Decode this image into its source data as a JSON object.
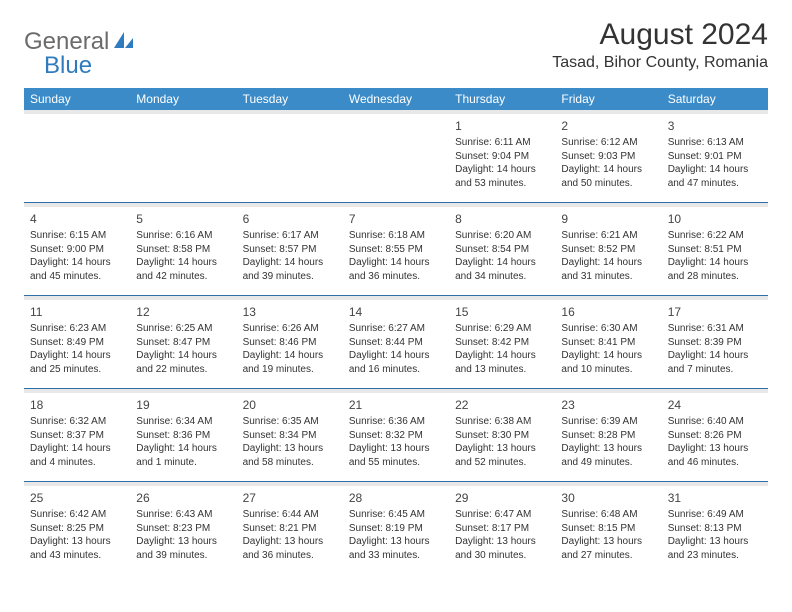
{
  "logo": {
    "general": "General",
    "blue": "Blue"
  },
  "title": "August 2024",
  "location": "Tasad, Bihor County, Romania",
  "colors": {
    "header_bg": "#3b8bc8",
    "header_text": "#ffffff",
    "row_divider": "#2f6fa8",
    "sep_row": "#e8e8e8",
    "logo_gray": "#6b6b6b",
    "logo_blue": "#2f7bbf"
  },
  "day_headers": [
    "Sunday",
    "Monday",
    "Tuesday",
    "Wednesday",
    "Thursday",
    "Friday",
    "Saturday"
  ],
  "weeks": [
    [
      null,
      null,
      null,
      null,
      {
        "n": "1",
        "sr": "6:11 AM",
        "ss": "9:04 PM",
        "dl": "14 hours and 53 minutes."
      },
      {
        "n": "2",
        "sr": "6:12 AM",
        "ss": "9:03 PM",
        "dl": "14 hours and 50 minutes."
      },
      {
        "n": "3",
        "sr": "6:13 AM",
        "ss": "9:01 PM",
        "dl": "14 hours and 47 minutes."
      }
    ],
    [
      {
        "n": "4",
        "sr": "6:15 AM",
        "ss": "9:00 PM",
        "dl": "14 hours and 45 minutes."
      },
      {
        "n": "5",
        "sr": "6:16 AM",
        "ss": "8:58 PM",
        "dl": "14 hours and 42 minutes."
      },
      {
        "n": "6",
        "sr": "6:17 AM",
        "ss": "8:57 PM",
        "dl": "14 hours and 39 minutes."
      },
      {
        "n": "7",
        "sr": "6:18 AM",
        "ss": "8:55 PM",
        "dl": "14 hours and 36 minutes."
      },
      {
        "n": "8",
        "sr": "6:20 AM",
        "ss": "8:54 PM",
        "dl": "14 hours and 34 minutes."
      },
      {
        "n": "9",
        "sr": "6:21 AM",
        "ss": "8:52 PM",
        "dl": "14 hours and 31 minutes."
      },
      {
        "n": "10",
        "sr": "6:22 AM",
        "ss": "8:51 PM",
        "dl": "14 hours and 28 minutes."
      }
    ],
    [
      {
        "n": "11",
        "sr": "6:23 AM",
        "ss": "8:49 PM",
        "dl": "14 hours and 25 minutes."
      },
      {
        "n": "12",
        "sr": "6:25 AM",
        "ss": "8:47 PM",
        "dl": "14 hours and 22 minutes."
      },
      {
        "n": "13",
        "sr": "6:26 AM",
        "ss": "8:46 PM",
        "dl": "14 hours and 19 minutes."
      },
      {
        "n": "14",
        "sr": "6:27 AM",
        "ss": "8:44 PM",
        "dl": "14 hours and 16 minutes."
      },
      {
        "n": "15",
        "sr": "6:29 AM",
        "ss": "8:42 PM",
        "dl": "14 hours and 13 minutes."
      },
      {
        "n": "16",
        "sr": "6:30 AM",
        "ss": "8:41 PM",
        "dl": "14 hours and 10 minutes."
      },
      {
        "n": "17",
        "sr": "6:31 AM",
        "ss": "8:39 PM",
        "dl": "14 hours and 7 minutes."
      }
    ],
    [
      {
        "n": "18",
        "sr": "6:32 AM",
        "ss": "8:37 PM",
        "dl": "14 hours and 4 minutes."
      },
      {
        "n": "19",
        "sr": "6:34 AM",
        "ss": "8:36 PM",
        "dl": "14 hours and 1 minute."
      },
      {
        "n": "20",
        "sr": "6:35 AM",
        "ss": "8:34 PM",
        "dl": "13 hours and 58 minutes."
      },
      {
        "n": "21",
        "sr": "6:36 AM",
        "ss": "8:32 PM",
        "dl": "13 hours and 55 minutes."
      },
      {
        "n": "22",
        "sr": "6:38 AM",
        "ss": "8:30 PM",
        "dl": "13 hours and 52 minutes."
      },
      {
        "n": "23",
        "sr": "6:39 AM",
        "ss": "8:28 PM",
        "dl": "13 hours and 49 minutes."
      },
      {
        "n": "24",
        "sr": "6:40 AM",
        "ss": "8:26 PM",
        "dl": "13 hours and 46 minutes."
      }
    ],
    [
      {
        "n": "25",
        "sr": "6:42 AM",
        "ss": "8:25 PM",
        "dl": "13 hours and 43 minutes."
      },
      {
        "n": "26",
        "sr": "6:43 AM",
        "ss": "8:23 PM",
        "dl": "13 hours and 39 minutes."
      },
      {
        "n": "27",
        "sr": "6:44 AM",
        "ss": "8:21 PM",
        "dl": "13 hours and 36 minutes."
      },
      {
        "n": "28",
        "sr": "6:45 AM",
        "ss": "8:19 PM",
        "dl": "13 hours and 33 minutes."
      },
      {
        "n": "29",
        "sr": "6:47 AM",
        "ss": "8:17 PM",
        "dl": "13 hours and 30 minutes."
      },
      {
        "n": "30",
        "sr": "6:48 AM",
        "ss": "8:15 PM",
        "dl": "13 hours and 27 minutes."
      },
      {
        "n": "31",
        "sr": "6:49 AM",
        "ss": "8:13 PM",
        "dl": "13 hours and 23 minutes."
      }
    ]
  ],
  "labels": {
    "sunrise": "Sunrise:",
    "sunset": "Sunset:",
    "daylight": "Daylight:"
  }
}
